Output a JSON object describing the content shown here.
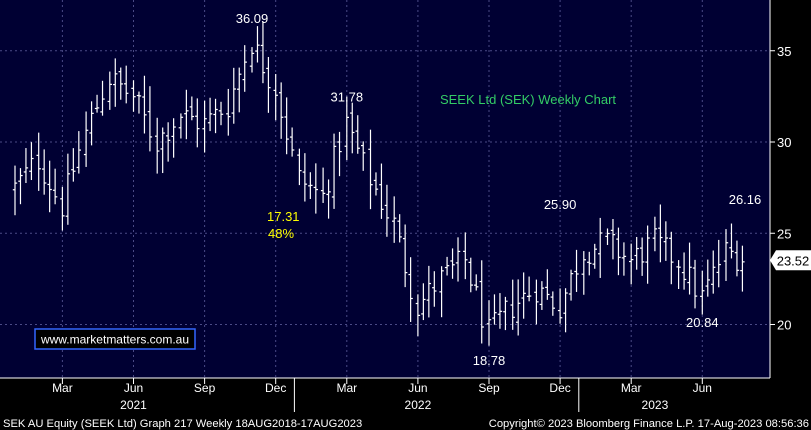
{
  "chart_data": {
    "type": "ohlc",
    "title": "SEEK Ltd (SEK) Weekly Chart",
    "watermark": "www.marketmatters.com.au",
    "last_price_label": "23.52",
    "ylim": [
      17,
      38
    ],
    "y_ticks": [
      {
        "value": 20,
        "label": "20"
      },
      {
        "value": 25,
        "label": "25"
      },
      {
        "value": 30,
        "label": "30"
      },
      {
        "value": 35,
        "label": "35"
      }
    ],
    "x_month_ticks": [
      {
        "date": "2021-03",
        "label": "Mar"
      },
      {
        "date": "2021-06",
        "label": "Jun"
      },
      {
        "date": "2021-09",
        "label": "Sep"
      },
      {
        "date": "2021-12",
        "label": "Dec"
      },
      {
        "date": "2022-03",
        "label": "Mar"
      },
      {
        "date": "2022-06",
        "label": "Jun"
      },
      {
        "date": "2022-09",
        "label": "Sep"
      },
      {
        "date": "2022-12",
        "label": "Dec"
      },
      {
        "date": "2023-03",
        "label": "Mar"
      },
      {
        "date": "2023-06",
        "label": "Jun"
      }
    ],
    "x_year_labels": [
      {
        "date": "2021-06",
        "label": "2021"
      },
      {
        "date": "2022-06",
        "label": "2022"
      },
      {
        "date": "2023-04",
        "label": "2023"
      }
    ],
    "price_annotations": [
      {
        "date": "2021-11",
        "value": 36.09,
        "label": "36.09"
      },
      {
        "date": "2022-03",
        "value": 31.78,
        "label": "31.78"
      },
      {
        "date": "2022-09",
        "value": 18.78,
        "label": "18.78"
      },
      {
        "date": "2022-12",
        "value": 25.9,
        "label": "25.90"
      },
      {
        "date": "2023-06",
        "value": 20.84,
        "label": "20.84"
      },
      {
        "date": "2023-08",
        "value": 26.16,
        "label": "26.16"
      }
    ],
    "drop_annotation": {
      "value_label": "17.31",
      "pct_label": "48%"
    },
    "weekly_close_anchors": [
      {
        "date": "2021-01",
        "close": 27.5
      },
      {
        "date": "2021-02",
        "close": 29.0
      },
      {
        "date": "2021-03",
        "close": 26.5
      },
      {
        "date": "2021-04",
        "close": 30.5
      },
      {
        "date": "2021-05",
        "close": 33.5
      },
      {
        "date": "2021-06",
        "close": 32.5
      },
      {
        "date": "2021-07",
        "close": 30.0
      },
      {
        "date": "2021-08",
        "close": 31.5
      },
      {
        "date": "2021-09",
        "close": 31.0
      },
      {
        "date": "2021-10",
        "close": 32.0
      },
      {
        "date": "2021-11",
        "close": 35.5
      },
      {
        "date": "2021-12",
        "close": 33.0
      },
      {
        "date": "2022-01",
        "close": 28.0
      },
      {
        "date": "2022-02",
        "close": 27.0
      },
      {
        "date": "2022-03",
        "close": 31.0
      },
      {
        "date": "2022-04",
        "close": 28.0
      },
      {
        "date": "2022-05",
        "close": 25.5
      },
      {
        "date": "2022-06",
        "close": 21.0
      },
      {
        "date": "2022-07",
        "close": 22.5
      },
      {
        "date": "2022-08",
        "close": 23.5
      },
      {
        "date": "2022-09",
        "close": 19.5
      },
      {
        "date": "2022-10",
        "close": 21.0
      },
      {
        "date": "2022-11",
        "close": 22.0
      },
      {
        "date": "2022-12",
        "close": 21.0
      },
      {
        "date": "2023-01",
        "close": 24.0
      },
      {
        "date": "2023-02",
        "close": 24.5
      },
      {
        "date": "2023-03",
        "close": 23.5
      },
      {
        "date": "2023-04",
        "close": 24.5
      },
      {
        "date": "2023-05",
        "close": 23.5
      },
      {
        "date": "2023-06",
        "close": 21.5
      },
      {
        "date": "2023-07",
        "close": 24.0
      },
      {
        "date": "2023-08",
        "close": 23.52
      }
    ],
    "colors": {
      "background": "#000000",
      "plot_background": "#000033",
      "grid": "#4a4a86",
      "bars": "#ffffff",
      "axis_text": "#ffffff",
      "annotation_text": "#ffffff",
      "title_text": "#33cc66",
      "drop_text": "#ffff00",
      "watermark_text": "#ffffff",
      "watermark_border": "#3366ff"
    }
  },
  "footer": {
    "left": "SEK AU Equity (SEEK Ltd) Graph 217  Weekly 18AUG2018-17AUG2023",
    "right": "Copyright© 2023 Bloomberg Finance L.P.    17-Aug-2023 08:56:36"
  }
}
